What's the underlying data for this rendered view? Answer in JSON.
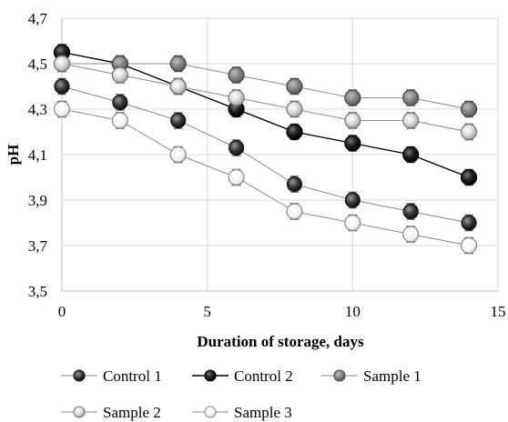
{
  "chart_data": {
    "type": "line",
    "xlabel": "Duration of storage, days",
    "ylabel": "pH",
    "xlim": [
      0,
      15
    ],
    "ylim": [
      3.5,
      4.7
    ],
    "x_ticks": [
      "0",
      "5",
      "10",
      "15"
    ],
    "y_ticks": [
      "3,5",
      "3,7",
      "3,9",
      "4,1",
      "4,3",
      "4,5",
      "4,7"
    ],
    "grid": "vertical and horizontal",
    "legend_position": "bottom",
    "series": [
      {
        "name": "Control 1",
        "x": [
          0,
          2,
          4,
          6,
          8,
          10,
          12,
          14
        ],
        "values": [
          4.4,
          4.33,
          4.25,
          4.13,
          3.97,
          3.9,
          3.85,
          3.8
        ],
        "line_color": "#8a8a8a",
        "marker": "dark"
      },
      {
        "name": "Control 2",
        "x": [
          0,
          2,
          4,
          6,
          8,
          10,
          12,
          14
        ],
        "values": [
          4.55,
          4.5,
          4.4,
          4.3,
          4.2,
          4.15,
          4.1,
          4.0
        ],
        "line_color": "#000000",
        "marker": "black"
      },
      {
        "name": "Sample 1",
        "x": [
          0,
          2,
          4,
          6,
          8,
          10,
          12,
          14
        ],
        "values": [
          4.5,
          4.5,
          4.5,
          4.45,
          4.4,
          4.35,
          4.35,
          4.3
        ],
        "line_color": "#8a8a8a",
        "marker": "gray"
      },
      {
        "name": "Sample 2",
        "x": [
          0,
          2,
          4,
          6,
          8,
          10,
          12,
          14
        ],
        "values": [
          4.5,
          4.45,
          4.4,
          4.35,
          4.3,
          4.25,
          4.25,
          4.2
        ],
        "line_color": "#8a8a8a",
        "marker": "light"
      },
      {
        "name": "Sample 3",
        "x": [
          0,
          2,
          4,
          6,
          8,
          10,
          12,
          14
        ],
        "values": [
          4.3,
          4.25,
          4.1,
          4.0,
          3.85,
          3.8,
          3.75,
          3.7
        ],
        "line_color": "#8a8a8a",
        "marker": "white"
      }
    ]
  }
}
